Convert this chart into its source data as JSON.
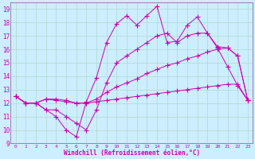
{
  "background_color": "#cceeff",
  "grid_color": "#b0d8cc",
  "line_color": "#cc00aa",
  "spine_color": "#9966aa",
  "xlim": [
    -0.5,
    23.5
  ],
  "ylim": [
    9,
    19.5
  ],
  "xlabel": "Windchill (Refroidissement éolien,°C)",
  "xticks": [
    0,
    1,
    2,
    3,
    4,
    5,
    6,
    7,
    8,
    9,
    10,
    11,
    12,
    13,
    14,
    15,
    16,
    17,
    18,
    19,
    20,
    21,
    22,
    23
  ],
  "yticks": [
    9,
    10,
    11,
    12,
    13,
    14,
    15,
    16,
    17,
    18,
    19
  ],
  "series": [
    {
      "x": [
        0,
        1,
        2,
        3,
        4,
        5,
        6,
        7,
        8,
        9,
        10,
        11,
        12,
        13,
        14,
        15,
        16,
        17,
        18,
        19,
        20,
        21,
        22,
        23
      ],
      "y": [
        12.5,
        12.0,
        12.0,
        11.5,
        11.0,
        10.0,
        9.5,
        12.1,
        13.9,
        16.5,
        17.9,
        18.5,
        17.8,
        18.5,
        19.2,
        16.5,
        16.6,
        17.8,
        18.4,
        17.2,
        16.1,
        14.7,
        13.3,
        12.2
      ]
    },
    {
      "x": [
        0,
        1,
        2,
        3,
        4,
        5,
        6,
        7,
        8,
        9,
        10,
        11,
        12,
        13,
        14,
        15,
        16,
        17,
        18,
        19,
        20,
        21,
        22,
        23
      ],
      "y": [
        12.5,
        12.0,
        12.0,
        11.5,
        11.5,
        11.0,
        10.5,
        10.0,
        11.5,
        13.5,
        15.0,
        15.5,
        16.0,
        16.5,
        17.0,
        17.2,
        16.5,
        17.0,
        17.2,
        17.2,
        16.2,
        16.1,
        15.5,
        12.2
      ]
    },
    {
      "x": [
        0,
        1,
        2,
        3,
        4,
        5,
        6,
        7,
        8,
        9,
        10,
        11,
        12,
        13,
        14,
        15,
        16,
        17,
        18,
        19,
        20,
        21,
        22,
        23
      ],
      "y": [
        12.5,
        12.0,
        12.0,
        12.3,
        12.3,
        12.2,
        12.0,
        12.0,
        12.3,
        12.8,
        13.2,
        13.5,
        13.8,
        14.2,
        14.5,
        14.8,
        15.0,
        15.3,
        15.5,
        15.8,
        16.0,
        16.1,
        15.5,
        12.2
      ]
    },
    {
      "x": [
        0,
        1,
        2,
        3,
        4,
        5,
        6,
        7,
        8,
        9,
        10,
        11,
        12,
        13,
        14,
        15,
        16,
        17,
        18,
        19,
        20,
        21,
        22,
        23
      ],
      "y": [
        12.5,
        12.0,
        12.0,
        12.3,
        12.2,
        12.1,
        12.0,
        12.0,
        12.1,
        12.2,
        12.3,
        12.4,
        12.5,
        12.6,
        12.7,
        12.8,
        12.9,
        13.0,
        13.1,
        13.2,
        13.3,
        13.4,
        13.4,
        12.2
      ]
    }
  ]
}
